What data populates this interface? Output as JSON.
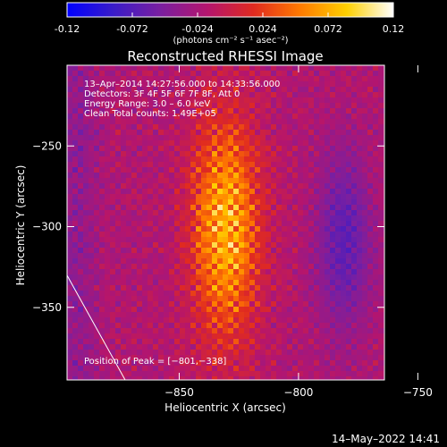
{
  "chart_data": {
    "type": "heatmap",
    "title": "Reconstructed RHESSI Image",
    "colorbar": {
      "ticks": [
        "-0.12",
        "-0.072",
        "-0.024",
        "0.024",
        "0.072",
        "0.12"
      ],
      "tick_values": [
        -0.12,
        -0.072,
        -0.024,
        0.024,
        0.072,
        0.12
      ],
      "range": [
        -0.12,
        0.12
      ],
      "colors": [
        "#0000ff",
        "#3a1cc8",
        "#7a1fa0",
        "#b4156e",
        "#e02a20",
        "#ff7a00",
        "#ffd000",
        "#ffffff"
      ],
      "unit_label": "(photons cm⁻² s⁻¹ asec⁻²)"
    },
    "xlabel": "Heliocentric X (arcsec)",
    "ylabel": "Heliocentric Y (arcsec)",
    "xlim": [
      -893,
      -822
    ],
    "ylim": [
      -395,
      -200
    ],
    "xticks": [
      -850,
      -800,
      -750
    ],
    "xtick_labels": [
      "−850",
      "−800",
      "−750"
    ],
    "yticks": [
      -250,
      -300,
      -350
    ],
    "ytick_labels": [
      "−250",
      "−300",
      "−350"
    ],
    "annotations": [
      "13–Apr–2014 14:27:56.000 to 14:33:56.000",
      "Detectors: 3F 4F 5F 6F 7F 8F, Att 0",
      "Energy Range: 3.0 – 6.0 keV",
      "Clean      Total counts: 1.49E+05"
    ],
    "peak_label": "Position of Peak = [−801,−338]",
    "peak": [
      -801,
      -338
    ],
    "grid": false
  },
  "footer": {
    "timestamp": "14–May–2022 14:41"
  }
}
